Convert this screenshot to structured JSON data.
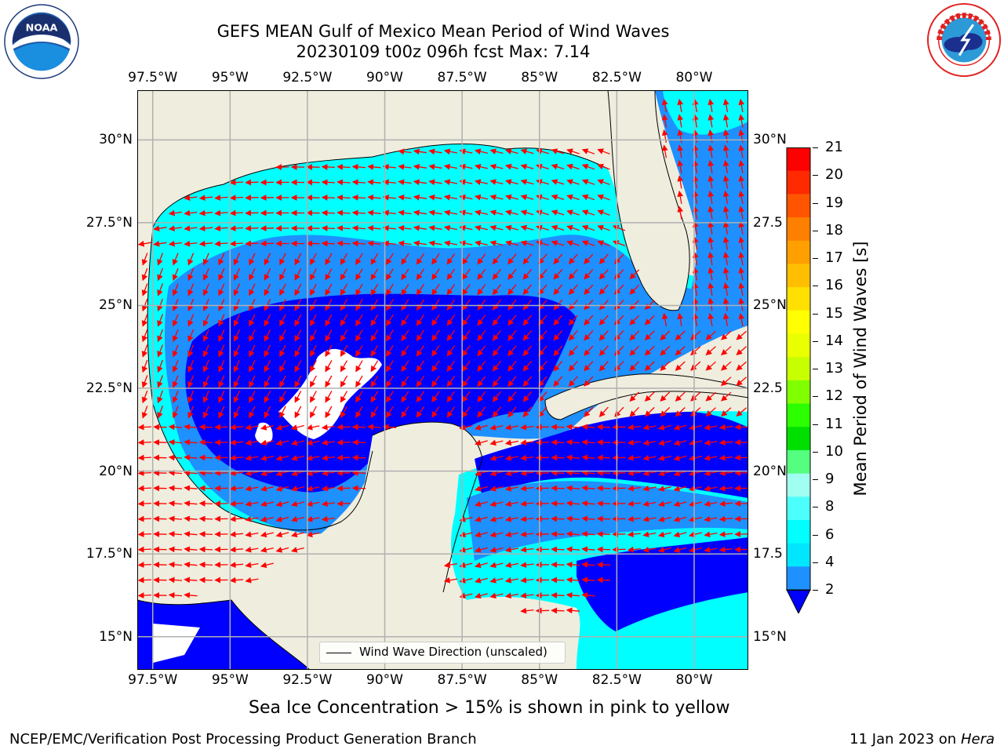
{
  "header": {
    "title_line1": "GEFS MEAN Gulf of Mexico Mean Period of Wind Waves",
    "title_line2": "20230109 t00z 096h fcst   Max: 7.14"
  },
  "logos": {
    "left": {
      "icon": "noaa-logo",
      "text": "NOAA",
      "ring_text": "NATIONAL OCEANIC AND ATMOSPHERIC ADMINISTRATION · U.S. DEPARTMENT OF COMMERCE"
    },
    "right": {
      "icon": "nws-logo",
      "ring_text": "NATIONAL WEATHER SERVICE"
    }
  },
  "map": {
    "projection": "PlateCarree",
    "lon_range": [
      -98,
      -78.25
    ],
    "lat_range": [
      14,
      31.5
    ],
    "lon_ticks": [
      "97.5°W",
      "95°W",
      "92.5°W",
      "90°W",
      "87.5°W",
      "85°W",
      "82.5°W",
      "80°W"
    ],
    "lat_ticks_left": [
      "30°N",
      "27.5°N",
      "25°N",
      "22.5°N",
      "20°N",
      "17.5°N",
      "15°N"
    ],
    "lat_ticks_right": [
      "30°N",
      "27.5",
      "25°N",
      "22.5",
      "20°N",
      "17.5",
      "15°N"
    ],
    "gridlines": true,
    "colors": {
      "land": "#efedde",
      "period_2_4": "#1e90ff",
      "period_4_6": "#00ffff",
      "deep": "#0000ff",
      "arrows": "#ff0000",
      "no_data": "#ffffff"
    }
  },
  "colorbar": {
    "label": "Mean Period of Wind Waves [s]",
    "ticks": [
      "21",
      "20",
      "19",
      "18",
      "17",
      "16",
      "15",
      "14",
      "13",
      "12",
      "11",
      "10",
      "9",
      "8",
      "6",
      "4",
      "2"
    ],
    "colors": [
      "#ff0000",
      "#ff2a00",
      "#ff5500",
      "#ff7f00",
      "#ff9f00",
      "#ffbf00",
      "#ffe000",
      "#ffff00",
      "#eaff00",
      "#c8ff00",
      "#7fff00",
      "#2bff00",
      "#00e000",
      "#54ff80",
      "#a0fff0",
      "#4dfffc",
      "#00ffff",
      "#00e6ff",
      "#1e90ff"
    ],
    "extend_color": "#0000ff"
  },
  "legend": {
    "label": "Wind Wave Direction (unscaled)"
  },
  "notes": {
    "sea_ice": "Sea Ice Concentration > 15% is shown in pink to yellow",
    "footer_left": "NCEP/EMC/Verification Post Processing Product Generation Branch",
    "footer_right_date": "11 Jan 2023 on ",
    "footer_right_host": "Hera"
  }
}
